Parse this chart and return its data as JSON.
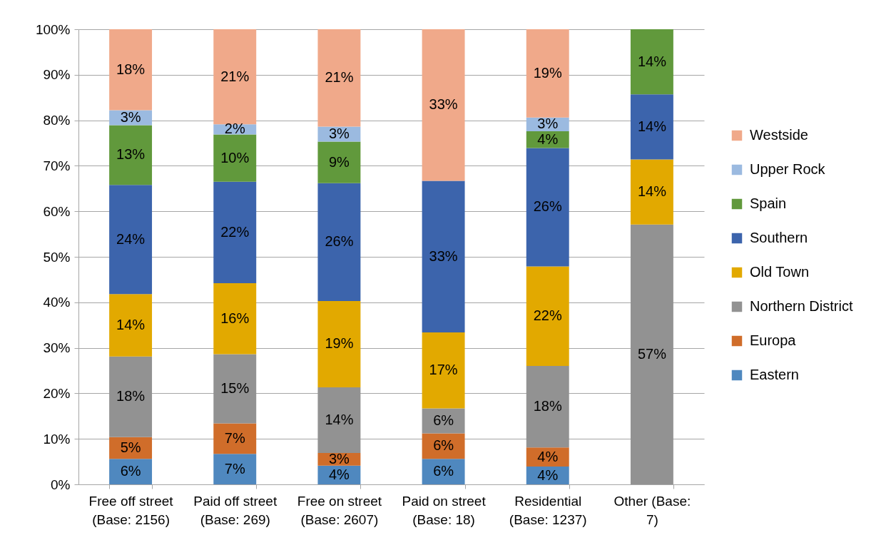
{
  "chart_data": {
    "type": "bar",
    "stacked": true,
    "categories": [
      "Free off street\n(Base: 2156)",
      "Paid off street\n(Base: 269)",
      "Free on street\n(Base: 2607)",
      "Paid on street\n(Base: 18)",
      "Residential\n(Base: 1237)",
      "Other (Base:\n7)"
    ],
    "ylim": [
      0,
      100
    ],
    "yticks": [
      {
        "value": 0,
        "label": "0%"
      },
      {
        "value": 10,
        "label": "10%"
      },
      {
        "value": 20,
        "label": "20%"
      },
      {
        "value": 30,
        "label": "30%"
      },
      {
        "value": 40,
        "label": "40%"
      },
      {
        "value": 50,
        "label": "50%"
      },
      {
        "value": 60,
        "label": "60%"
      },
      {
        "value": 70,
        "label": "70%"
      },
      {
        "value": 80,
        "label": "80%"
      },
      {
        "value": 90,
        "label": "90%"
      },
      {
        "value": 100,
        "label": "100%"
      }
    ],
    "grid": "y",
    "legend": "right",
    "series": [
      {
        "name": "Eastern",
        "color": "#4f88bf",
        "values": [
          5.6,
          6.7,
          4.1,
          5.6,
          3.9,
          null
        ],
        "value_labels": [
          "6%",
          "7%",
          "4%",
          "6%",
          "4%",
          null
        ]
      },
      {
        "name": "Europa",
        "color": "#d06d2a",
        "values": [
          4.8,
          6.7,
          2.8,
          5.6,
          4.2,
          null
        ],
        "value_labels": [
          "5%",
          "7%",
          "3%",
          "6%",
          "4%",
          null
        ]
      },
      {
        "name": "Northern District",
        "color": "#929292",
        "values": [
          17.7,
          15.2,
          14.4,
          5.5,
          17.9,
          57.1
        ],
        "value_labels": [
          "18%",
          "15%",
          "14%",
          "6%",
          "18%",
          "57%"
        ]
      },
      {
        "name": "Old Town",
        "color": "#e2a900",
        "values": [
          13.7,
          15.6,
          19.0,
          16.7,
          21.9,
          14.3
        ],
        "value_labels": [
          "14%",
          "16%",
          "19%",
          "17%",
          "22%",
          "14%"
        ]
      },
      {
        "name": "Southern",
        "color": "#3c64ac",
        "values": [
          24.0,
          22.3,
          25.9,
          33.3,
          26.0,
          14.3
        ],
        "value_labels": [
          "24%",
          "22%",
          "26%",
          "33%",
          "26%",
          "14%"
        ]
      },
      {
        "name": "Spain",
        "color": "#61993c",
        "values": [
          13.1,
          10.4,
          9.1,
          null,
          3.7,
          14.3
        ],
        "value_labels": [
          "13%",
          "10%",
          "9%",
          null,
          "4%",
          "14%"
        ]
      },
      {
        "name": "Upper Rock",
        "color": "#9bbae0",
        "values": [
          3.3,
          2.2,
          3.3,
          null,
          3.0,
          null
        ],
        "value_labels": [
          "3%",
          "2%",
          "3%",
          null,
          "3%",
          null
        ]
      },
      {
        "name": "Westside",
        "color": "#f0a98a",
        "values": [
          17.8,
          20.9,
          21.4,
          33.3,
          19.4,
          null
        ],
        "value_labels": [
          "18%",
          "21%",
          "21%",
          "33%",
          "19%",
          null
        ]
      }
    ]
  }
}
